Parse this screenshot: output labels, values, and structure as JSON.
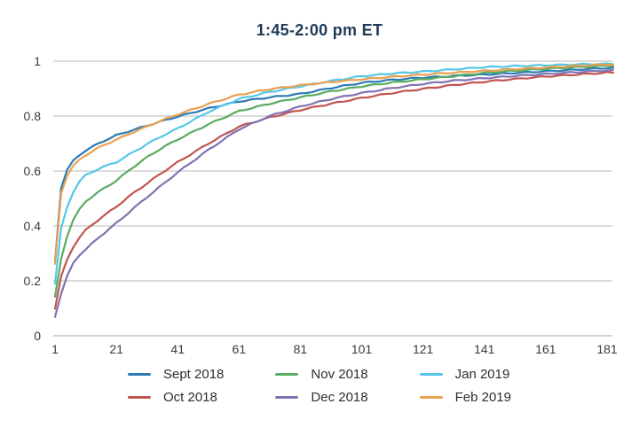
{
  "title": "1:45-2:00 pm ET",
  "colors": {
    "title": "#1d3a56",
    "grid": "#c6c6c6",
    "axis": "#b9b9b9",
    "tick_label": "#3a3a3a",
    "legend_label": "#2d2d2d",
    "background": "#ffffff"
  },
  "chart_data": {
    "type": "line",
    "title": "1:45-2:00 pm ET",
    "xlabel": "",
    "ylabel": "",
    "xlim": [
      1,
      185
    ],
    "ylim": [
      0,
      1
    ],
    "x_ticks": [
      1,
      21,
      41,
      61,
      81,
      101,
      121,
      141,
      161,
      181
    ],
    "y_ticks": [
      0,
      0.2,
      0.4,
      0.6,
      0.8,
      1
    ],
    "y_tick_labels": [
      "0",
      "0.2",
      "0.4",
      "0.6",
      "0.8",
      "1"
    ],
    "grid": "horizontal-only",
    "legend_position": "bottom",
    "legend_rows": [
      [
        "Sept 2018",
        "Nov 2018",
        "Jan 2019"
      ],
      [
        "Oct 2018",
        "Dec 2018",
        "Feb 2019"
      ]
    ],
    "x": [
      1,
      2,
      3,
      4,
      6,
      8,
      11,
      16,
      21,
      26,
      31,
      36,
      41,
      51,
      61,
      71,
      81,
      91,
      101,
      111,
      121,
      131,
      141,
      151,
      161,
      171,
      181
    ],
    "series": [
      {
        "name": "Sept 2018",
        "color": "#2d7bb5",
        "values": [
          0.27,
          0.46,
          0.54,
          0.585,
          0.625,
          0.65,
          0.675,
          0.705,
          0.73,
          0.748,
          0.765,
          0.782,
          0.798,
          0.828,
          0.853,
          0.868,
          0.881,
          0.902,
          0.921,
          0.932,
          0.94,
          0.946,
          0.951,
          0.957,
          0.963,
          0.969,
          0.975
        ]
      },
      {
        "name": "Oct 2018",
        "color": "#c25551",
        "values": [
          0.1,
          0.165,
          0.215,
          0.25,
          0.305,
          0.345,
          0.385,
          0.43,
          0.47,
          0.515,
          0.555,
          0.595,
          0.632,
          0.7,
          0.762,
          0.795,
          0.822,
          0.845,
          0.866,
          0.884,
          0.899,
          0.913,
          0.925,
          0.935,
          0.944,
          0.951,
          0.958
        ]
      },
      {
        "name": "Nov 2018",
        "color": "#5aab61",
        "values": [
          0.14,
          0.22,
          0.28,
          0.33,
          0.4,
          0.445,
          0.49,
          0.53,
          0.565,
          0.61,
          0.65,
          0.685,
          0.715,
          0.77,
          0.818,
          0.845,
          0.868,
          0.89,
          0.908,
          0.922,
          0.934,
          0.945,
          0.957,
          0.965,
          0.972,
          0.978,
          0.983
        ]
      },
      {
        "name": "Dec 2018",
        "color": "#8172b2",
        "values": [
          0.07,
          0.115,
          0.155,
          0.19,
          0.245,
          0.285,
          0.315,
          0.365,
          0.41,
          0.458,
          0.505,
          0.55,
          0.595,
          0.677,
          0.752,
          0.8,
          0.835,
          0.862,
          0.884,
          0.902,
          0.917,
          0.929,
          0.938,
          0.946,
          0.953,
          0.96,
          0.966
        ]
      },
      {
        "name": "Jan 2019",
        "color": "#55c7ea",
        "values": [
          0.19,
          0.31,
          0.39,
          0.44,
          0.5,
          0.55,
          0.585,
          0.612,
          0.632,
          0.665,
          0.698,
          0.728,
          0.755,
          0.815,
          0.862,
          0.888,
          0.908,
          0.928,
          0.945,
          0.955,
          0.962,
          0.97,
          0.978,
          0.982,
          0.985,
          0.988,
          0.99
        ]
      },
      {
        "name": "Feb 2019",
        "color": "#e9a050",
        "values": [
          0.26,
          0.44,
          0.52,
          0.565,
          0.605,
          0.632,
          0.658,
          0.69,
          0.714,
          0.739,
          0.762,
          0.785,
          0.806,
          0.844,
          0.878,
          0.898,
          0.912,
          0.924,
          0.934,
          0.943,
          0.951,
          0.958,
          0.965,
          0.971,
          0.977,
          0.983,
          0.988
        ]
      }
    ]
  }
}
